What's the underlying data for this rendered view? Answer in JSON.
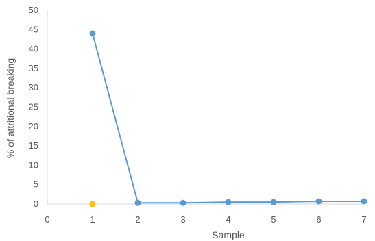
{
  "chart_data": {
    "type": "scatter",
    "xlabel": "Sample",
    "ylabel": "% of attritional breaking",
    "xlim": [
      0,
      7
    ],
    "ylim": [
      0,
      50
    ],
    "x_ticks": [
      "0",
      "1",
      "2",
      "3",
      "4",
      "5",
      "6",
      "7"
    ],
    "y_ticks": [
      "0",
      "5",
      "10",
      "15",
      "20",
      "25",
      "30",
      "35",
      "40",
      "45",
      "50"
    ],
    "grid": false,
    "series": [
      {
        "color": "#5B9BD5",
        "style": "line-with-markers",
        "points": [
          {
            "x": 1,
            "y": 44
          },
          {
            "x": 2,
            "y": 0.3
          },
          {
            "x": 3,
            "y": 0.3
          },
          {
            "x": 4,
            "y": 0.5
          },
          {
            "x": 5,
            "y": 0.5
          },
          {
            "x": 6,
            "y": 0.7
          },
          {
            "x": 7,
            "y": 0.7
          }
        ]
      },
      {
        "color": "#FFC000",
        "style": "markers",
        "points": [
          {
            "x": 1,
            "y": 0
          }
        ]
      }
    ]
  }
}
